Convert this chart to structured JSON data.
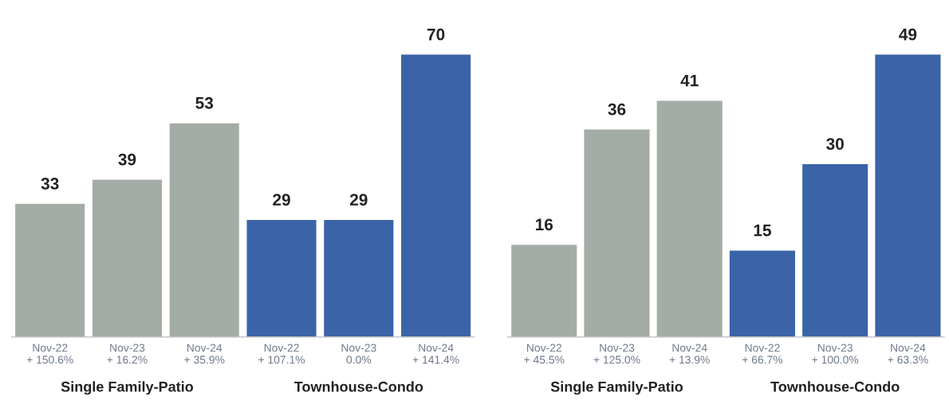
{
  "chart_data": [
    {
      "type": "bar",
      "categories": [
        "Nov-22\n+ 150.6%",
        "Nov-23\n+ 16.2%",
        "Nov-24\n+ 35.9%",
        "Nov-22\n+ 107.1%",
        "Nov-23\n0.0%",
        "Nov-24\n+ 141.4%"
      ],
      "values": [
        33,
        39,
        53,
        29,
        29,
        70
      ],
      "colors": [
        "#a4aca6",
        "#a4aca6",
        "#a4aca6",
        "#3b64a8",
        "#3b64a8",
        "#3b64a8"
      ],
      "data_labels": true,
      "tick_labels": "x",
      "grid": false,
      "legend": false,
      "annotations": [
        "Single Family-Patio",
        "Townhouse-Condo"
      ]
    },
    {
      "type": "bar",
      "categories": [
        "Nov-22\n+ 45.5%",
        "Nov-23\n+ 125.0%",
        "Nov-24\n+ 13.9%",
        "Nov-22\n+ 66.7%",
        "Nov-23\n+ 100.0%",
        "Nov-24\n+ 63.3%"
      ],
      "values": [
        16,
        36,
        41,
        15,
        30,
        49
      ],
      "colors": [
        "#a4aca6",
        "#a4aca6",
        "#a4aca6",
        "#3b64a8",
        "#3b64a8",
        "#3b64a8"
      ],
      "data_labels": true,
      "tick_labels": "x",
      "grid": false,
      "legend": false,
      "annotations": [
        "Single Family-Patio",
        "Townhouse-Condo"
      ]
    }
  ]
}
